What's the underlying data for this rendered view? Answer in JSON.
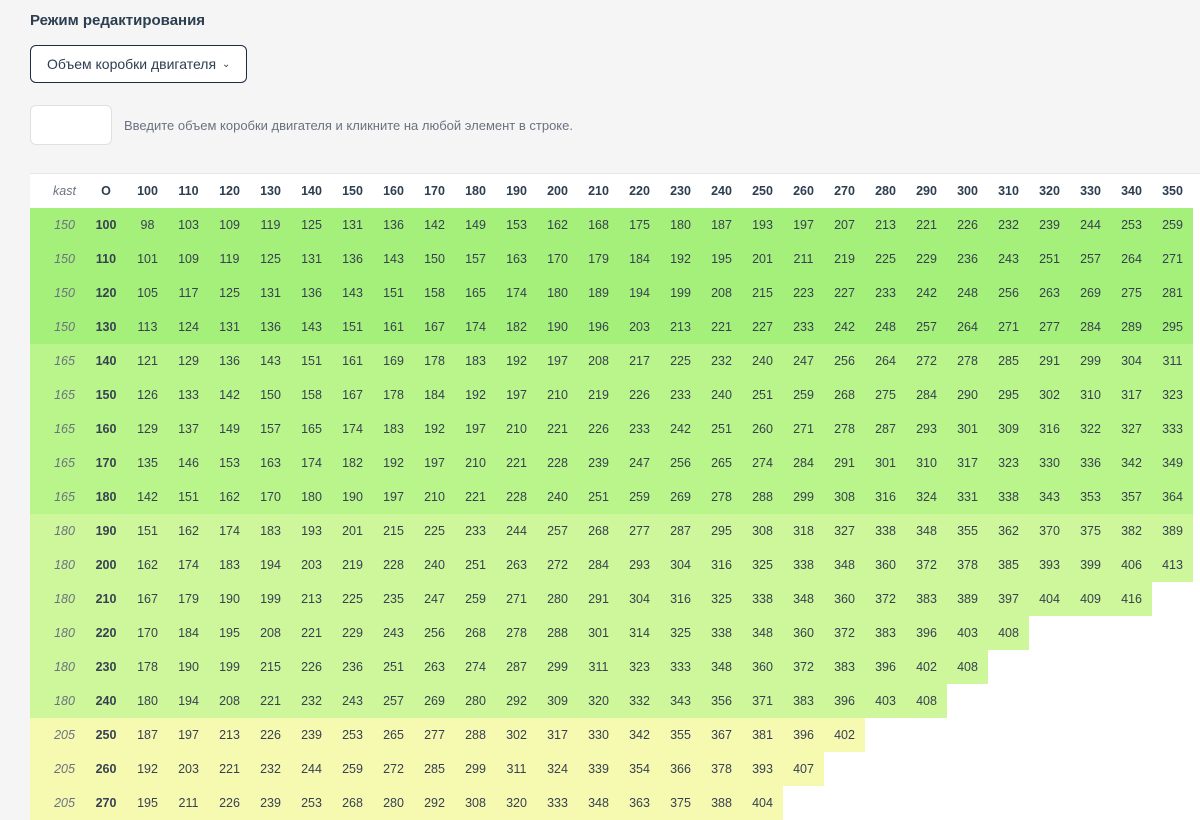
{
  "title": "Режим редактирования",
  "dropdown_label": "Объем коробки двигателя",
  "help_text": "Введите объем коробки двигателя и кликните на любой элемент в строке.",
  "table": {
    "header_label": "kast",
    "col_zero_label": "O",
    "column_headers": [
      "100",
      "110",
      "120",
      "130",
      "140",
      "150",
      "160",
      "170",
      "180",
      "190",
      "200",
      "210",
      "220",
      "230",
      "240",
      "250",
      "260",
      "270",
      "280",
      "290",
      "300",
      "310",
      "320",
      "330",
      "340",
      "350"
    ],
    "colors": {
      "g1": "#a5f07a",
      "g2": "#b9f58a",
      "g3": "#cdf79a",
      "g4": "#e2f8a8",
      "g5": "#f6f9b0",
      "blank": "#ffffff",
      "text": "#374151",
      "header_text": "#2c3e50"
    },
    "color_groups": {
      "150": "g1",
      "165": "g2",
      "180": "g3",
      "205": "g5"
    },
    "rows": [
      {
        "kast": "150",
        "label": "100",
        "cells": [
          "98",
          "103",
          "109",
          "119",
          "125",
          "131",
          "136",
          "142",
          "149",
          "153",
          "162",
          "168",
          "175",
          "180",
          "187",
          "193",
          "197",
          "207",
          "213",
          "221",
          "226",
          "232",
          "239",
          "244",
          "253",
          "259"
        ]
      },
      {
        "kast": "150",
        "label": "110",
        "cells": [
          "101",
          "109",
          "119",
          "125",
          "131",
          "136",
          "143",
          "150",
          "157",
          "163",
          "170",
          "179",
          "184",
          "192",
          "195",
          "201",
          "211",
          "219",
          "225",
          "229",
          "236",
          "243",
          "251",
          "257",
          "264",
          "271"
        ]
      },
      {
        "kast": "150",
        "label": "120",
        "cells": [
          "105",
          "117",
          "125",
          "131",
          "136",
          "143",
          "151",
          "158",
          "165",
          "174",
          "180",
          "189",
          "194",
          "199",
          "208",
          "215",
          "223",
          "227",
          "233",
          "242",
          "248",
          "256",
          "263",
          "269",
          "275",
          "281"
        ]
      },
      {
        "kast": "150",
        "label": "130",
        "cells": [
          "113",
          "124",
          "131",
          "136",
          "143",
          "151",
          "161",
          "167",
          "174",
          "182",
          "190",
          "196",
          "203",
          "213",
          "221",
          "227",
          "233",
          "242",
          "248",
          "257",
          "264",
          "271",
          "277",
          "284",
          "289",
          "295"
        ]
      },
      {
        "kast": "165",
        "label": "140",
        "cells": [
          "121",
          "129",
          "136",
          "143",
          "151",
          "161",
          "169",
          "178",
          "183",
          "192",
          "197",
          "208",
          "217",
          "225",
          "232",
          "240",
          "247",
          "256",
          "264",
          "272",
          "278",
          "285",
          "291",
          "299",
          "304",
          "311"
        ]
      },
      {
        "kast": "165",
        "label": "150",
        "cells": [
          "126",
          "133",
          "142",
          "150",
          "158",
          "167",
          "178",
          "184",
          "192",
          "197",
          "210",
          "219",
          "226",
          "233",
          "240",
          "251",
          "259",
          "268",
          "275",
          "284",
          "290",
          "295",
          "302",
          "310",
          "317",
          "323"
        ]
      },
      {
        "kast": "165",
        "label": "160",
        "cells": [
          "129",
          "137",
          "149",
          "157",
          "165",
          "174",
          "183",
          "192",
          "197",
          "210",
          "221",
          "226",
          "233",
          "242",
          "251",
          "260",
          "271",
          "278",
          "287",
          "293",
          "301",
          "309",
          "316",
          "322",
          "327",
          "333"
        ]
      },
      {
        "kast": "165",
        "label": "170",
        "cells": [
          "135",
          "146",
          "153",
          "163",
          "174",
          "182",
          "192",
          "197",
          "210",
          "221",
          "228",
          "239",
          "247",
          "256",
          "265",
          "274",
          "284",
          "291",
          "301",
          "310",
          "317",
          "323",
          "330",
          "336",
          "342",
          "349"
        ]
      },
      {
        "kast": "165",
        "label": "180",
        "cells": [
          "142",
          "151",
          "162",
          "170",
          "180",
          "190",
          "197",
          "210",
          "221",
          "228",
          "240",
          "251",
          "259",
          "269",
          "278",
          "288",
          "299",
          "308",
          "316",
          "324",
          "331",
          "338",
          "343",
          "353",
          "357",
          "364"
        ]
      },
      {
        "kast": "180",
        "label": "190",
        "cells": [
          "151",
          "162",
          "174",
          "183",
          "193",
          "201",
          "215",
          "225",
          "233",
          "244",
          "257",
          "268",
          "277",
          "287",
          "295",
          "308",
          "318",
          "327",
          "338",
          "348",
          "355",
          "362",
          "370",
          "375",
          "382",
          "389"
        ]
      },
      {
        "kast": "180",
        "label": "200",
        "cells": [
          "162",
          "174",
          "183",
          "194",
          "203",
          "219",
          "228",
          "240",
          "251",
          "263",
          "272",
          "284",
          "293",
          "304",
          "316",
          "325",
          "338",
          "348",
          "360",
          "372",
          "378",
          "385",
          "393",
          "399",
          "406",
          "413"
        ]
      },
      {
        "kast": "180",
        "label": "210",
        "cells": [
          "167",
          "179",
          "190",
          "199",
          "213",
          "225",
          "235",
          "247",
          "259",
          "271",
          "280",
          "291",
          "304",
          "316",
          "325",
          "338",
          "348",
          "360",
          "372",
          "383",
          "389",
          "397",
          "404",
          "409",
          "416",
          ""
        ]
      },
      {
        "kast": "180",
        "label": "220",
        "cells": [
          "170",
          "184",
          "195",
          "208",
          "221",
          "229",
          "243",
          "256",
          "268",
          "278",
          "288",
          "301",
          "314",
          "325",
          "338",
          "348",
          "360",
          "372",
          "383",
          "396",
          "403",
          "408",
          "",
          "",
          "",
          ""
        ]
      },
      {
        "kast": "180",
        "label": "230",
        "cells": [
          "178",
          "190",
          "199",
          "215",
          "226",
          "236",
          "251",
          "263",
          "274",
          "287",
          "299",
          "311",
          "323",
          "333",
          "348",
          "360",
          "372",
          "383",
          "396",
          "402",
          "408",
          "",
          "",
          "",
          "",
          ""
        ]
      },
      {
        "kast": "180",
        "label": "240",
        "cells": [
          "180",
          "194",
          "208",
          "221",
          "232",
          "243",
          "257",
          "269",
          "280",
          "292",
          "309",
          "320",
          "332",
          "343",
          "356",
          "371",
          "383",
          "396",
          "403",
          "408",
          "",
          "",
          "",
          "",
          "",
          ""
        ]
      },
      {
        "kast": "205",
        "label": "250",
        "cells": [
          "187",
          "197",
          "213",
          "226",
          "239",
          "253",
          "265",
          "277",
          "288",
          "302",
          "317",
          "330",
          "342",
          "355",
          "367",
          "381",
          "396",
          "402",
          "",
          "",
          "",
          "",
          "",
          "",
          "",
          ""
        ]
      },
      {
        "kast": "205",
        "label": "260",
        "cells": [
          "192",
          "203",
          "221",
          "232",
          "244",
          "259",
          "272",
          "285",
          "299",
          "311",
          "324",
          "339",
          "354",
          "366",
          "378",
          "393",
          "407",
          "",
          "",
          "",
          "",
          "",
          "",
          "",
          "",
          ""
        ]
      },
      {
        "kast": "205",
        "label": "270",
        "cells": [
          "195",
          "211",
          "226",
          "239",
          "253",
          "268",
          "280",
          "292",
          "308",
          "320",
          "333",
          "348",
          "363",
          "375",
          "388",
          "404",
          "",
          "",
          "",
          "",
          "",
          "",
          "",
          "",
          "",
          ""
        ]
      }
    ]
  }
}
